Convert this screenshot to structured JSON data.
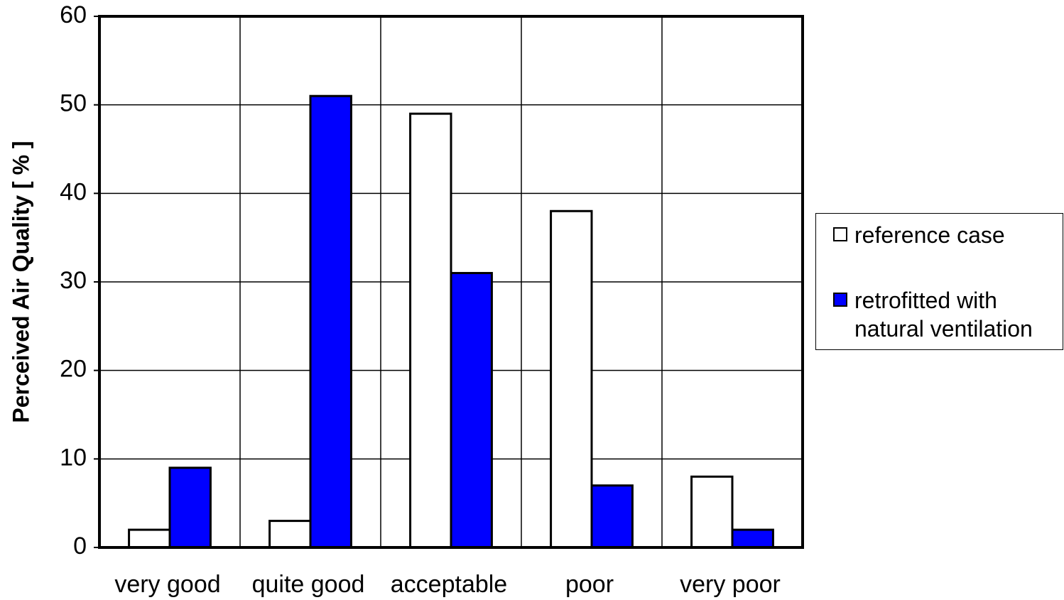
{
  "chart_data": {
    "type": "bar",
    "ylabel": "Perceived Air Quality [ % ]",
    "categories": [
      "very good",
      "quite good",
      "acceptable",
      "poor",
      "very poor"
    ],
    "series": [
      {
        "name": "reference case",
        "color": "#ffffff",
        "values": [
          2,
          3,
          49,
          38,
          8
        ]
      },
      {
        "name": "retrofitted with natural ventilation",
        "color": "#0000ff",
        "values": [
          9,
          51,
          31,
          7,
          2
        ]
      }
    ],
    "ylim": [
      0,
      60
    ],
    "yticks": [
      0,
      10,
      20,
      30,
      40,
      50,
      60
    ],
    "grid": true,
    "legend": "right"
  }
}
